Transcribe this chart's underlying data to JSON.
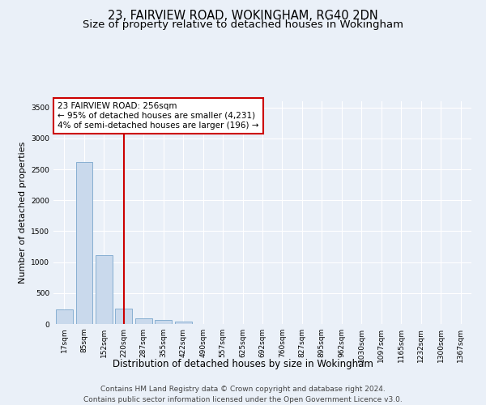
{
  "title_line1": "23, FAIRVIEW ROAD, WOKINGHAM, RG40 2DN",
  "title_line2": "Size of property relative to detached houses in Wokingham",
  "xlabel": "Distribution of detached houses by size in Wokingham",
  "ylabel": "Number of detached properties",
  "categories": [
    "17sqm",
    "85sqm",
    "152sqm",
    "220sqm",
    "287sqm",
    "355sqm",
    "422sqm",
    "490sqm",
    "557sqm",
    "625sqm",
    "692sqm",
    "760sqm",
    "827sqm",
    "895sqm",
    "962sqm",
    "1030sqm",
    "1097sqm",
    "1165sqm",
    "1232sqm",
    "1300sqm",
    "1367sqm"
  ],
  "values": [
    230,
    2620,
    1110,
    255,
    95,
    65,
    45,
    0,
    0,
    0,
    0,
    0,
    0,
    0,
    0,
    0,
    0,
    0,
    0,
    0,
    0
  ],
  "bar_color": "#c9d9ec",
  "bar_edge_color": "#7aa6cc",
  "vline_color": "#cc0000",
  "vline_pos": 3.0,
  "annotation_text": "23 FAIRVIEW ROAD: 256sqm\n← 95% of detached houses are smaller (4,231)\n4% of semi-detached houses are larger (196) →",
  "annotation_box_facecolor": "#ffffff",
  "annotation_box_edgecolor": "#cc0000",
  "ylim": [
    0,
    3600
  ],
  "yticks": [
    0,
    500,
    1000,
    1500,
    2000,
    2500,
    3000,
    3500
  ],
  "footer_line1": "Contains HM Land Registry data © Crown copyright and database right 2024.",
  "footer_line2": "Contains public sector information licensed under the Open Government Licence v3.0.",
  "bg_color": "#eaf0f8",
  "plot_bg_color": "#eaf0f8",
  "grid_color": "#ffffff",
  "title_fontsize": 10.5,
  "subtitle_fontsize": 9.5,
  "xlabel_fontsize": 8.5,
  "ylabel_fontsize": 8,
  "tick_fontsize": 6.5,
  "footer_fontsize": 6.5,
  "annotation_fontsize": 7.5
}
